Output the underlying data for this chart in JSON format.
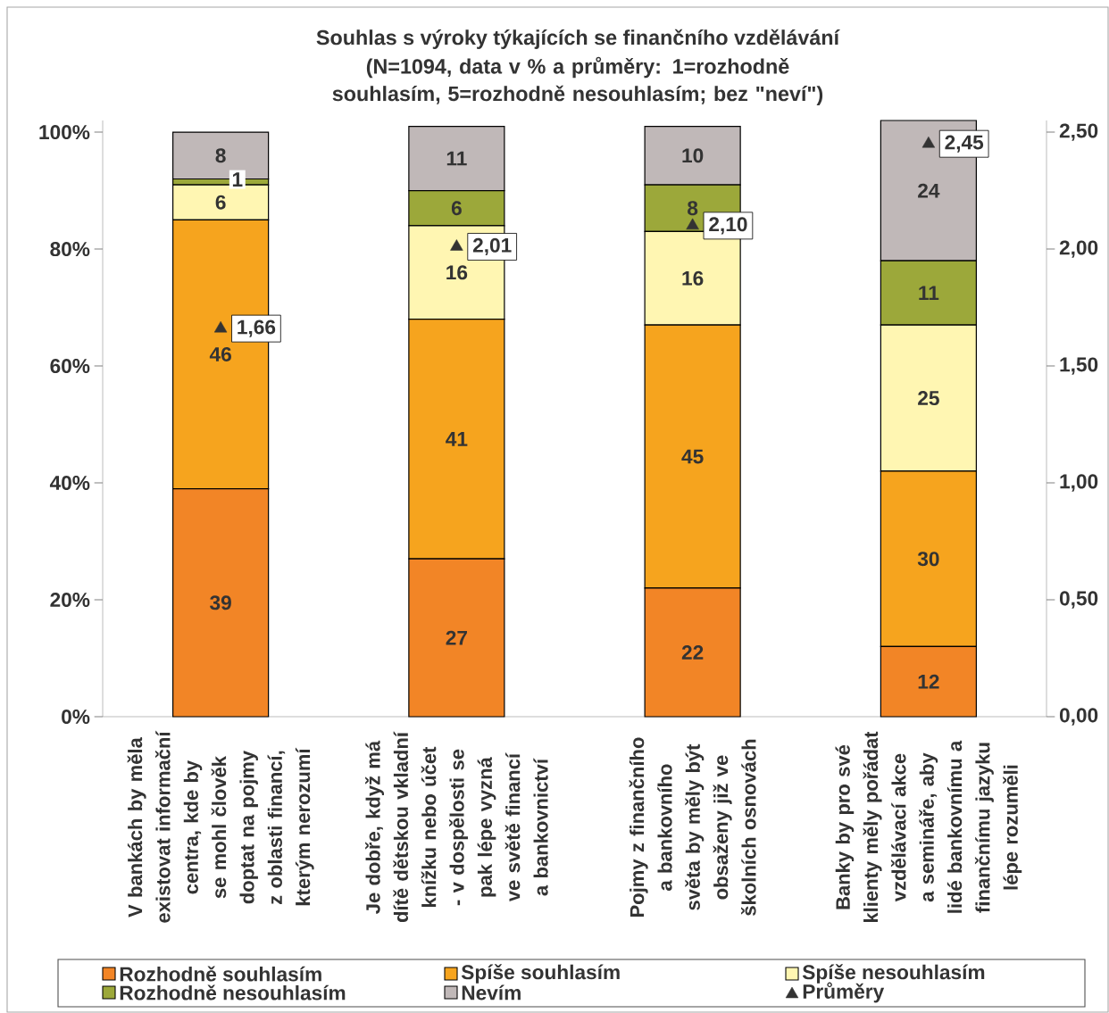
{
  "chart_data": {
    "type": "bar",
    "stacked": true,
    "title": "Souhlas s výroky týkajících se finančního vzdělávání",
    "subtitle": "(N=1094, data v % a průměry: 1=rozhodně souhlasím, 5=rozhodně nesouhlasím; bez \"neví\")",
    "categories": [
      "V bankách by měla existovat informační centra, kde by se mohl člověk doptat na pojmy z oblasti financí, kterým nerozumí",
      "Je dobře, když má dítě dětskou vkladní knížku nebo účet - v dospělosti se pak lépe vyzná ve světě financí a bankovnictví",
      "Pojmy z finančního a bankovního světa by měly být obsaženy již ve školních osnovách",
      "Banky by pro své klienty měly pořádat vzdělávací akce a semináře, aby lidé bankovnímu a finančnímu jazyku lépe rozuměli"
    ],
    "series": [
      {
        "name": "Rozhodně souhlasím",
        "color": "#f28526",
        "values": [
          39,
          27,
          22,
          12
        ]
      },
      {
        "name": "Spíše souhlasím",
        "color": "#f6a41e",
        "values": [
          46,
          41,
          45,
          30
        ]
      },
      {
        "name": "Spíše nesouhlasím",
        "color": "#fff6b2",
        "values": [
          6,
          16,
          16,
          25
        ]
      },
      {
        "name": "Rozhodně nesouhlasím",
        "color": "#9ca83a",
        "values": [
          1,
          6,
          8,
          11
        ]
      },
      {
        "name": "Nevím",
        "color": "#c0b8b8",
        "values": [
          8,
          11,
          10,
          24
        ]
      },
      {
        "name": "Průměry",
        "type": "scatter",
        "axis": "y2",
        "marker": "triangle",
        "color": "#333333",
        "values": [
          1.66,
          2.01,
          2.1,
          2.45
        ],
        "value_labels": [
          "1,66",
          "2,01",
          "2,10",
          "2,45"
        ]
      }
    ],
    "ylim": [
      0,
      102
    ],
    "yticks": [
      {
        "value": 0,
        "label": "0%"
      },
      {
        "value": 20,
        "label": "20%"
      },
      {
        "value": 40,
        "label": "40%"
      },
      {
        "value": 60,
        "label": "60%"
      },
      {
        "value": 80,
        "label": "80%"
      },
      {
        "value": 100,
        "label": "100%"
      }
    ],
    "y2lim": [
      0,
      2.55
    ],
    "y2ticks": [
      {
        "value": 0,
        "label": "0,00"
      },
      {
        "value": 0.5,
        "label": "0,50"
      },
      {
        "value": 1,
        "label": "1,00"
      },
      {
        "value": 1.5,
        "label": "1,50"
      },
      {
        "value": 2,
        "label": "2,00"
      },
      {
        "value": 2.5,
        "label": "2,50"
      }
    ],
    "data_labels": true,
    "legend": "bottom",
    "grid": false
  }
}
